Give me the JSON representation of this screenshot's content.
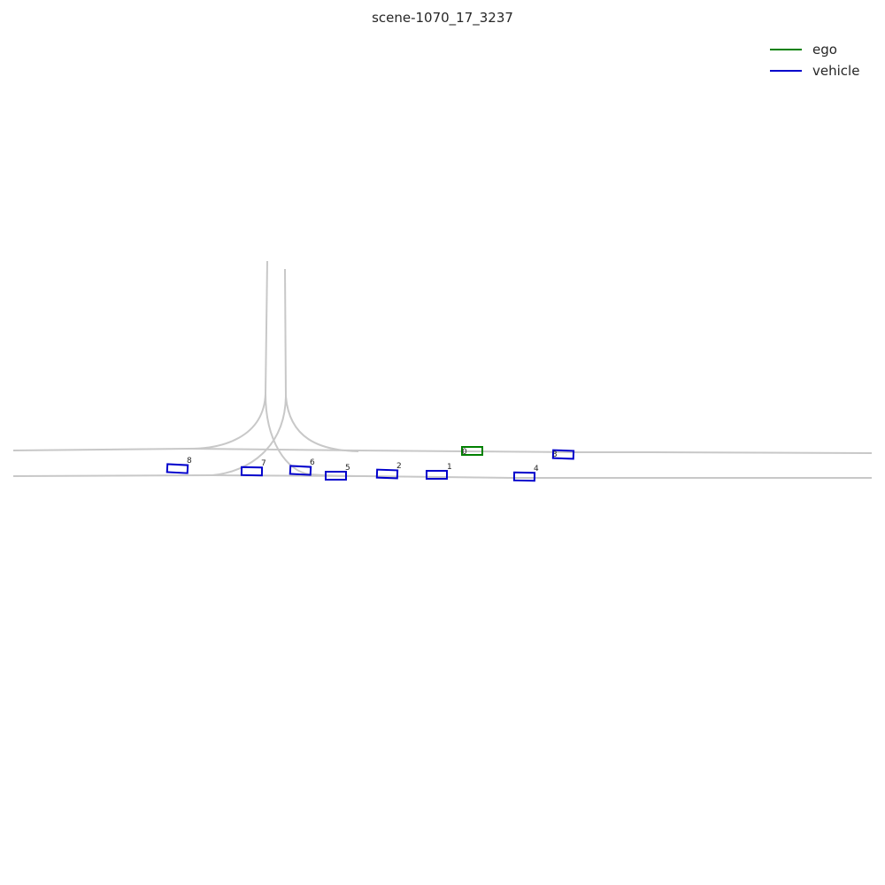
{
  "title": "scene-1070_17_3237",
  "legend": [
    {
      "label": "ego",
      "color": "#008000"
    },
    {
      "label": "vehicle",
      "color": "#0000cc"
    }
  ],
  "objects": [
    {
      "id": "0",
      "category": "ego"
    },
    {
      "id": "1",
      "category": "vehicle"
    },
    {
      "id": "2",
      "category": "vehicle"
    },
    {
      "id": "3",
      "category": "vehicle"
    },
    {
      "id": "4",
      "category": "vehicle"
    },
    {
      "id": "5",
      "category": "vehicle"
    },
    {
      "id": "6",
      "category": "vehicle"
    },
    {
      "id": "7",
      "category": "vehicle"
    },
    {
      "id": "8",
      "category": "vehicle"
    }
  ]
}
